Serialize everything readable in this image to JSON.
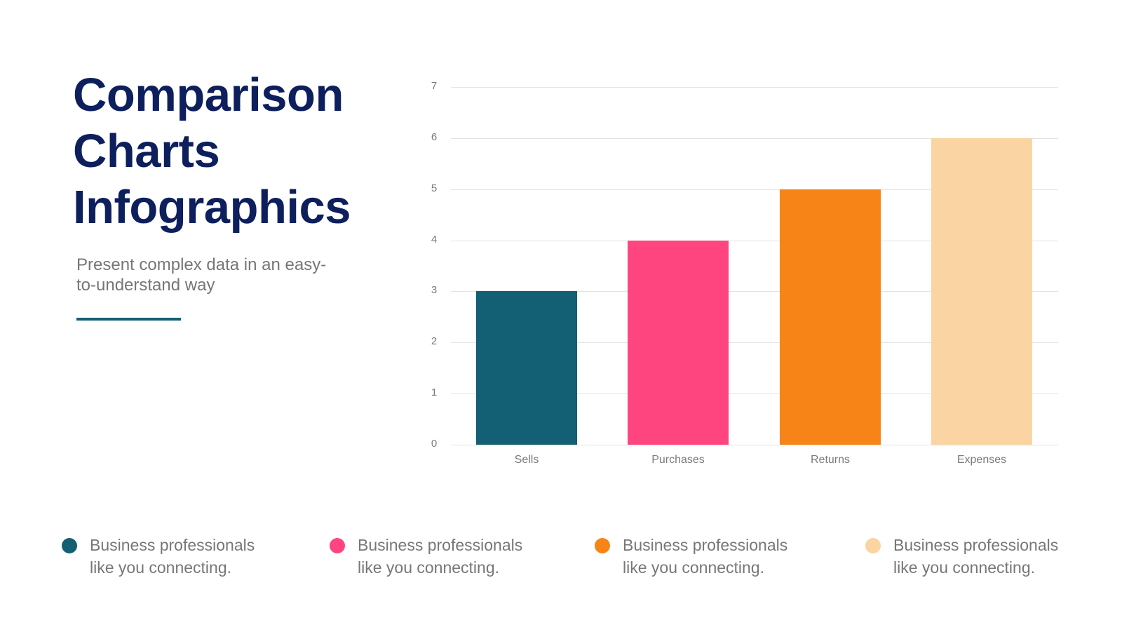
{
  "slide": {
    "title_lines": [
      "Comparison",
      "Charts",
      "Infographics"
    ],
    "subtitle_lines": [
      "Present complex data in an easy-",
      "to-understand way"
    ],
    "accent_color": "#135f74",
    "title_color": "#0d1f5c"
  },
  "chart_data": {
    "type": "bar",
    "title": "",
    "xlabel": "",
    "ylabel": "",
    "categories": [
      "Sells",
      "Purchases",
      "Returns",
      "Expenses"
    ],
    "values": [
      3,
      4,
      5,
      6
    ],
    "colors": [
      "#135f74",
      "#ff4580",
      "#f78416",
      "#fad5a3"
    ],
    "ylim": [
      0,
      7
    ],
    "yticks": [
      "0",
      "1",
      "2",
      "3",
      "4",
      "5",
      "6",
      "7"
    ],
    "grid": true,
    "legend_position": "none"
  },
  "legend": {
    "items": [
      {
        "line1": "Business professionals",
        "line2": "like you connecting.",
        "color": "#135f74"
      },
      {
        "line1": "Business professionals",
        "line2": "like you connecting.",
        "color": "#ff4580"
      },
      {
        "line1": "Business professionals",
        "line2": "like you connecting.",
        "color": "#f78416"
      },
      {
        "line1": "Business professionals",
        "line2": "like you connecting.",
        "color": "#fad5a3"
      }
    ]
  }
}
